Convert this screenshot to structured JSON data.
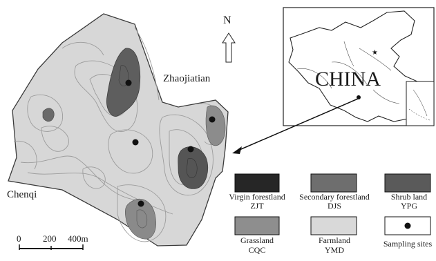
{
  "map": {
    "north_label": "N",
    "place_labels": {
      "northeast": "Zhaojiatian",
      "west": "Chenqi"
    },
    "inset_label": "CHINA",
    "scale_bar": {
      "ticks": [
        "0",
        "200",
        "400m"
      ]
    }
  },
  "legend": {
    "items": [
      {
        "line1": "Virgin forestland",
        "line2": "ZJT",
        "fill": "#262626"
      },
      {
        "line1": "Secondary forestland",
        "line2": "DJS",
        "fill": "#6e6e6e"
      },
      {
        "line1": "Shrub land",
        "line2": "YPG",
        "fill": "#5a5a5a"
      },
      {
        "line1": "Grassland",
        "line2": "CQC",
        "fill": "#8e8e8e"
      },
      {
        "line1": "Farmland",
        "line2": "YMD",
        "fill": "#d9d9d9"
      },
      {
        "line1": "Sampling sites",
        "line2": "",
        "fill": "#ffffff",
        "symbol": "dot"
      }
    ]
  },
  "colors": {
    "study_area": "#d7d7d7",
    "contour": "#9c9c9c",
    "dark_patch": "#5e5e5e",
    "mid_patch": "#8c8c8c",
    "dot": "#111111"
  }
}
